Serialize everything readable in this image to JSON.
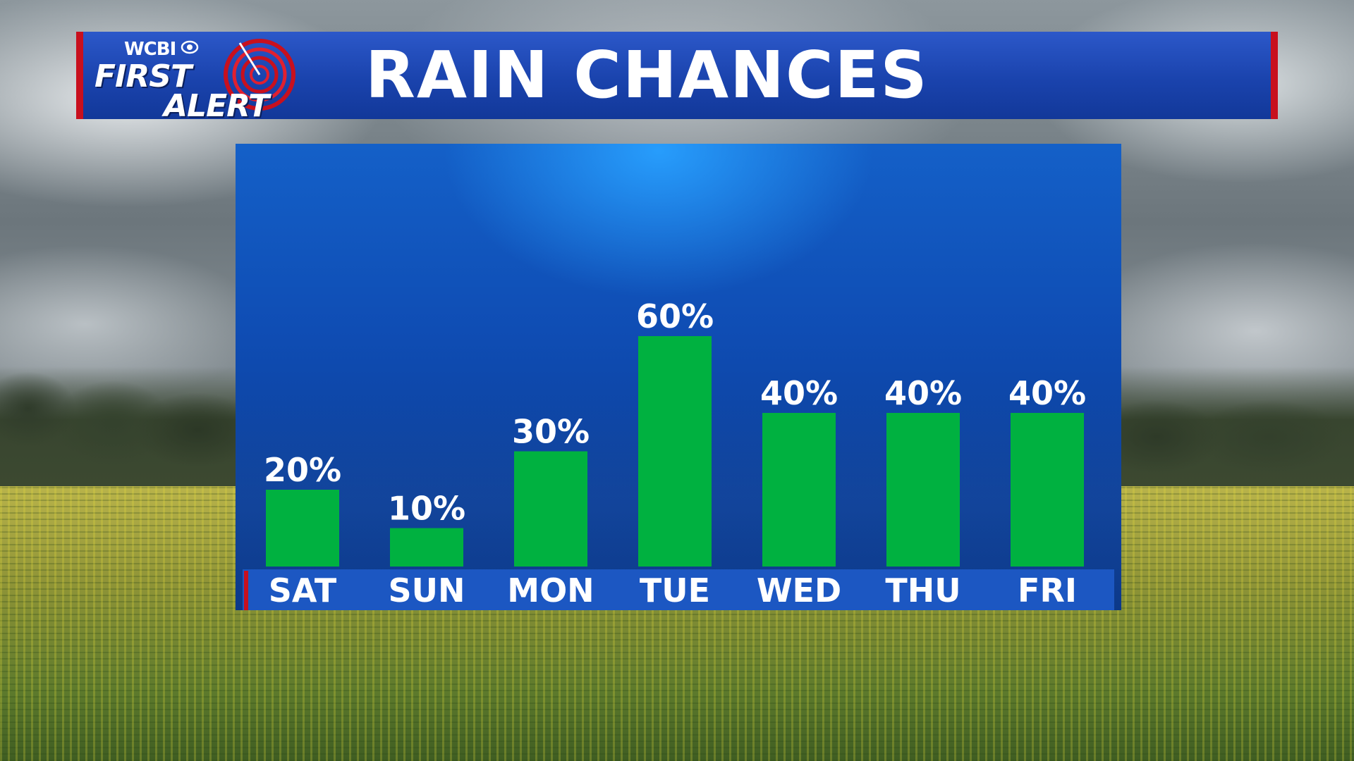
{
  "header": {
    "station": "WCBI",
    "brand_line1": "FIRST",
    "brand_line2": "ALERT",
    "title": "RAIN CHANCES"
  },
  "colors": {
    "banner": "#1a43ad",
    "banner_edge": "#c8101e",
    "bar": "#00b140",
    "panel": "#0f4db4",
    "text": "#ffffff"
  },
  "icons": [
    "cbs-eye-icon",
    "radar-icon"
  ],
  "chart_data": {
    "type": "bar",
    "title": "RAIN CHANCES",
    "categories": [
      "SAT",
      "SUN",
      "MON",
      "TUE",
      "WED",
      "THU",
      "FRI"
    ],
    "values": [
      20,
      10,
      30,
      60,
      40,
      40,
      40
    ],
    "labels": [
      "20%",
      "10%",
      "30%",
      "60%",
      "40%",
      "40%",
      "40%"
    ],
    "ylim": [
      0,
      60
    ],
    "grid": false,
    "legend": "none"
  }
}
